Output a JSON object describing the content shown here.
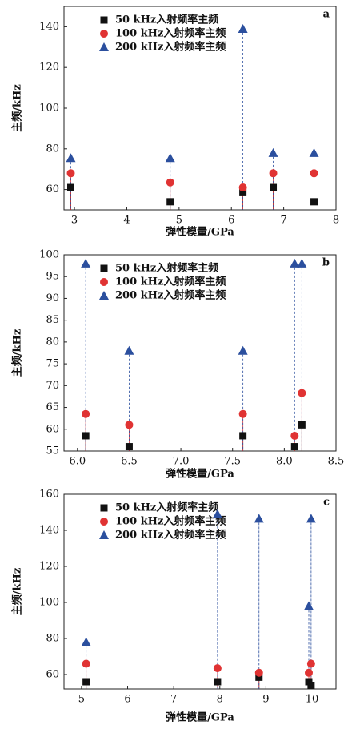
{
  "chart_data": [
    {
      "type": "scatter",
      "label": "a",
      "x_label": "弹性模量/GPa",
      "y_label": "主频/kHz",
      "xlim": [
        2.8,
        8
      ],
      "xticks": [
        3,
        4,
        5,
        6,
        7,
        8
      ],
      "ylim": [
        50,
        150
      ],
      "yticks": [
        60,
        80,
        100,
        120,
        140
      ],
      "x": [
        2.93,
        4.83,
        6.22,
        6.8,
        7.58
      ],
      "series": [
        {
          "name": "50 kHz入射频率主频",
          "color": "#111111",
          "marker": "square",
          "values": [
            61,
            54,
            58.5,
            61,
            54
          ]
        },
        {
          "name": "100 kHz入射频率主频",
          "color": "#e03333",
          "marker": "circle",
          "values": [
            68,
            63.5,
            61,
            68,
            68
          ]
        },
        {
          "name": "200 kHz入射频率主频",
          "color": "#2b4f9e",
          "marker": "triangle",
          "values": [
            75.5,
            75.5,
            139,
            78,
            78
          ]
        }
      ]
    },
    {
      "type": "scatter",
      "label": "b",
      "x_label": "弹性模量/GPa",
      "y_label": "主频/kHz",
      "xlim": [
        5.87,
        8.5
      ],
      "xticks": [
        {
          "value": 6,
          "label": "6.0"
        },
        6.5,
        {
          "value": 7,
          "label": "7.0"
        },
        7.5,
        {
          "value": 8,
          "label": "8.0"
        },
        8.5
      ],
      "ylim": [
        55,
        100
      ],
      "yticks": [
        55,
        60,
        65,
        70,
        75,
        80,
        85,
        90,
        95,
        100
      ],
      "x": [
        6.08,
        6.5,
        7.6,
        8.1,
        8.17
      ],
      "series": [
        {
          "name": "50 kHz入射频率主频",
          "color": "#111111",
          "marker": "square",
          "values": [
            58.5,
            56,
            58.5,
            56,
            61
          ]
        },
        {
          "name": "100 kHz入射频率主频",
          "color": "#e03333",
          "marker": "circle",
          "values": [
            63.5,
            61,
            63.5,
            58.5,
            68.3
          ]
        },
        {
          "name": "200 kHz入射频率主频",
          "color": "#2b4f9e",
          "marker": "triangle",
          "values": [
            98,
            78,
            78,
            98,
            98
          ]
        }
      ]
    },
    {
      "type": "scatter",
      "label": "c",
      "x_label": "弹性模量/GPa",
      "y_label": "主频/kHz",
      "xlim": [
        4.62,
        10.52
      ],
      "xticks": [
        5,
        6,
        7,
        8,
        9,
        10
      ],
      "ylim": [
        52,
        160
      ],
      "yticks": [
        60,
        80,
        100,
        120,
        140,
        160
      ],
      "x": [
        5.1,
        7.95,
        8.85,
        9.93,
        9.98
      ],
      "series": [
        {
          "name": "50 kHz入射频率主频",
          "color": "#111111",
          "marker": "square",
          "values": [
            56,
            56,
            58.5,
            56,
            54
          ]
        },
        {
          "name": "100 kHz入射频率主频",
          "color": "#e03333",
          "marker": "circle",
          "values": [
            66,
            63.5,
            61,
            61,
            66
          ]
        },
        {
          "name": "200 kHz入射频率主频",
          "color": "#2b4f9e",
          "marker": "triangle",
          "values": [
            78,
            149,
            146.5,
            98,
            146.5
          ]
        }
      ]
    }
  ]
}
